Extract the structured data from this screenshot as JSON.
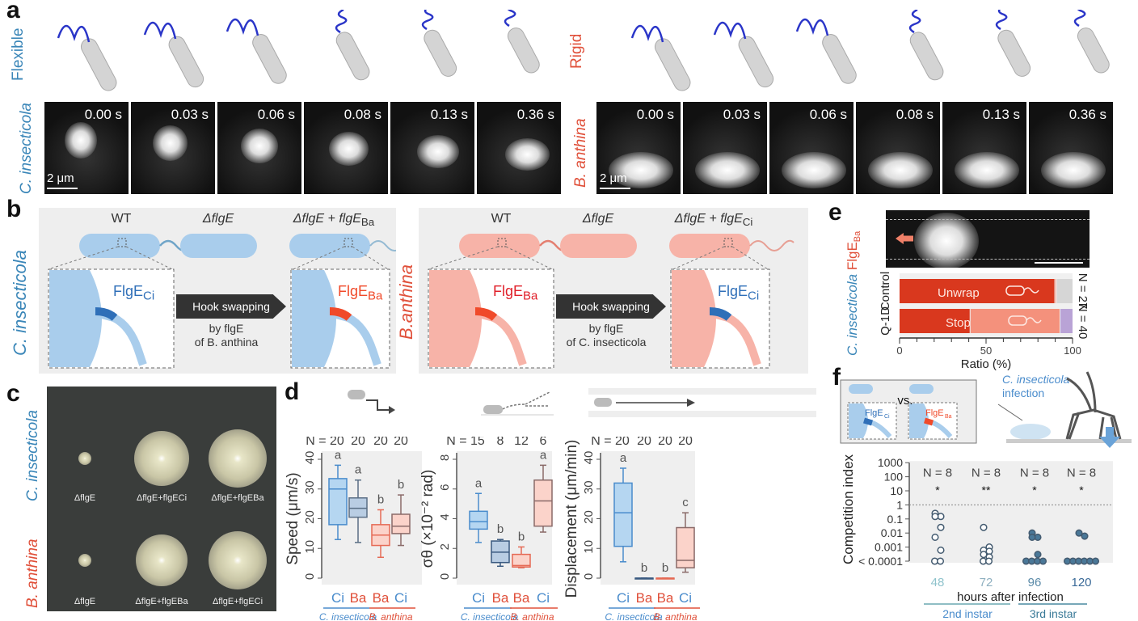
{
  "panels": {
    "a": "a",
    "b": "b",
    "c": "c",
    "d": "d",
    "e": "e",
    "f": "f"
  },
  "panel_a": {
    "flexible_label": "Flexible",
    "rigid_label": "Rigid",
    "left_species": "C. insecticola",
    "right_species": "B. anthina",
    "times": [
      "0.00 s",
      "0.03 s",
      "0.06 s",
      "0.08 s",
      "0.13 s",
      "0.36 s"
    ],
    "scale_bar": "2 μm"
  },
  "panel_b": {
    "left": {
      "species": "C. insecticola",
      "wt": "WT",
      "delta": "ΔflgE",
      "rescue": "ΔflgE + flgE",
      "rescue_sub": "Ba",
      "hook": "FlgE",
      "hook_sub": "Ci",
      "hook2": "FlgE",
      "hook2_sub": "Ba",
      "arrow": "Hook swapping",
      "by": "by flgE",
      "of": "of B. anthina"
    },
    "right": {
      "species": "B.anthina",
      "wt": "WT",
      "delta": "ΔflgE",
      "rescue": "ΔflgE + flgE",
      "rescue_sub": "Ci",
      "hook": "FlgE",
      "hook_sub": "Ba",
      "hook2": "FlgE",
      "hook2_sub": "Ci",
      "arrow": "Hook swapping",
      "by": "by flgE",
      "of": "of C. insecticola"
    },
    "colors": {
      "ci": "#a9cdec",
      "ba": "#f7b3a8",
      "ci_hook": "#2f6fb8",
      "ba_hook": "#f04a2a"
    }
  },
  "panel_c": {
    "top_species": "C. insecticola",
    "bottom_species": "B. anthina",
    "top_labels": [
      "ΔflgE",
      "ΔflgE+flgECi",
      "ΔflgE+flgEBa"
    ],
    "bottom_labels": [
      "ΔflgE",
      "ΔflgE+flgEBa",
      "ΔflgE+flgECi"
    ]
  },
  "chart_data": [
    {
      "type": "box",
      "ylabel": "Speed (μm/s)",
      "ylim": [
        0,
        40
      ],
      "yticks": [
        0,
        10,
        20,
        30,
        40
      ],
      "categories": [
        "Ci",
        "Ba",
        "Ba",
        "Ci"
      ],
      "groups": [
        "C. insecticola",
        "B. anthina"
      ],
      "n": [
        "N = 20",
        "20",
        "20",
        "20"
      ],
      "letters": [
        "a",
        "a",
        "b",
        "b"
      ],
      "boxes": [
        {
          "min": 13,
          "q1": 18,
          "median": 30,
          "q3": 33.5,
          "max": 38
        },
        {
          "min": 12,
          "q1": 20.5,
          "median": 23.5,
          "q3": 27,
          "max": 33
        },
        {
          "min": 7,
          "q1": 11,
          "median": 14.5,
          "q3": 18,
          "max": 23
        },
        {
          "min": 11,
          "q1": 15,
          "median": 17.5,
          "q3": 21.5,
          "max": 28
        }
      ]
    },
    {
      "type": "box",
      "ylabel": "σθ (×10⁻² rad)",
      "ylim": [
        0,
        8
      ],
      "yticks": [
        0,
        2,
        4,
        6,
        8
      ],
      "categories": [
        "Ci",
        "Ba",
        "Ba",
        "Ci"
      ],
      "groups": [
        "C. insecticola",
        "B. anthina"
      ],
      "n": [
        "N = 15",
        "8",
        "12",
        "6"
      ],
      "letters": [
        "a",
        "b",
        "b",
        "a"
      ],
      "boxes": [
        {
          "min": 2.4,
          "q1": 3.3,
          "median": 3.8,
          "q3": 4.5,
          "max": 5.7
        },
        {
          "min": 0.8,
          "q1": 1.05,
          "median": 1.75,
          "q3": 2.5,
          "max": 2.6
        },
        {
          "min": 0.7,
          "q1": 0.75,
          "median": 0.85,
          "q3": 1.6,
          "max": 2.1
        },
        {
          "min": 3.1,
          "q1": 3.5,
          "median": 5.2,
          "q3": 6.6,
          "max": 7.6
        }
      ]
    },
    {
      "type": "box",
      "ylabel": "Displacement (μm/min)",
      "ylim": [
        0,
        40
      ],
      "yticks": [
        0,
        10,
        20,
        30,
        40
      ],
      "categories": [
        "Ci",
        "Ba",
        "Ba",
        "Ci"
      ],
      "groups": [
        "C. insecticola",
        "B. anthina"
      ],
      "n": [
        "N = 20",
        "20",
        "20",
        "20"
      ],
      "letters": [
        "a",
        "b",
        "b",
        "c"
      ],
      "boxes": [
        {
          "min": 5.5,
          "q1": 10.7,
          "median": 22,
          "q3": 32,
          "max": 37
        },
        {
          "min": 0,
          "q1": 0,
          "median": 0,
          "q3": 0,
          "max": 0
        },
        {
          "min": 0,
          "q1": 0,
          "median": 0,
          "q3": 0,
          "max": 0
        },
        {
          "min": 2,
          "q1": 3.5,
          "median": 6,
          "q3": 17,
          "max": 22
        }
      ]
    },
    {
      "type": "bar",
      "orientation": "horizontal-stacked",
      "xlabel": "Ratio (%)",
      "xlim": [
        0,
        100
      ],
      "xticks": [
        "0",
        "50",
        "100"
      ],
      "categories": [
        "Control",
        "Q-1D"
      ],
      "n": [
        "N = 27",
        "N = 40"
      ],
      "series": [
        {
          "values": [
            [
              90,
              1,
              9
            ],
            [
              41,
              52,
              7
            ]
          ]
        }
      ],
      "labels": [
        "Unwrap",
        "Stop"
      ],
      "colors": [
        "#d9381e",
        "#f4917c",
        "#d6d6d6",
        "#b9a3d6"
      ],
      "ylabel": "C. insecticola FlgE",
      "ylabel_sub": "Ba"
    },
    {
      "type": "scatter",
      "ylabel": "Competition index",
      "yscale": "log",
      "yticks": [
        "< 0.0001",
        "0.001",
        "0.01",
        "0.1",
        "1",
        "10",
        "100",
        "1000"
      ],
      "categories": [
        "48",
        "72",
        "96",
        "120"
      ],
      "xlabel": "hours after infection",
      "stages": [
        "2nd instar",
        "3rd instar"
      ],
      "n": [
        "N = 8",
        "N = 8",
        "N = 8",
        "N = 8"
      ],
      "sig": [
        "*",
        "**",
        "*",
        "*"
      ],
      "reference_line": 1,
      "points": [
        [
          0.25,
          0.15,
          0.15,
          0.025,
          0.005,
          0.0006,
          0.0001,
          0.0001
        ],
        [
          0.025,
          0.001,
          0.0006,
          0.0005,
          0.0003,
          0.0002,
          0.0001,
          0.0001
        ],
        [
          0.01,
          0.005,
          0.005,
          0.0003,
          0.0001,
          0.0001,
          0.0001,
          0.0001
        ],
        [
          0.01,
          0.006,
          0.0001,
          0.0001,
          0.0001,
          0.0001,
          0.0001,
          0.0001
        ]
      ]
    }
  ],
  "panel_f": {
    "vs": "vs.",
    "hook1": "FlgE",
    "hook1_sub": "Ci",
    "hook2": "FlgE",
    "hook2_sub": "Ba",
    "infection1": "C. insecticola",
    "infection2": "infection"
  }
}
